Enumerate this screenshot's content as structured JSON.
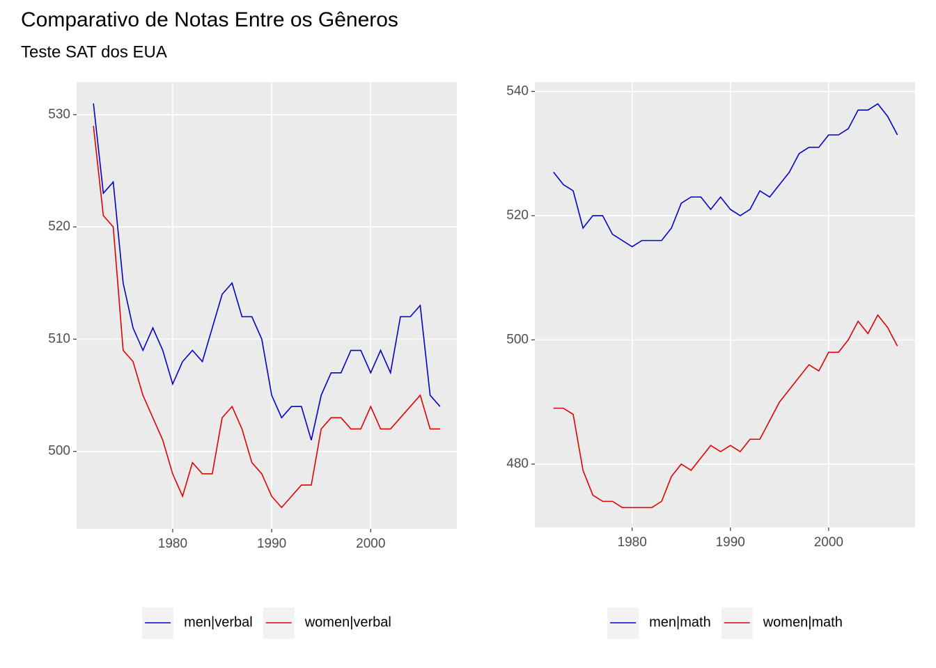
{
  "title": "Comparativo de Notas Entre os Gêneros",
  "subtitle": "Teste SAT dos EUA",
  "chart_data": [
    {
      "type": "line",
      "x": [
        1972,
        1973,
        1974,
        1975,
        1976,
        1977,
        1978,
        1979,
        1980,
        1981,
        1982,
        1983,
        1984,
        1985,
        1986,
        1987,
        1988,
        1989,
        1990,
        1991,
        1992,
        1993,
        1994,
        1995,
        1996,
        1997,
        1998,
        1999,
        2000,
        2001,
        2002,
        2003,
        2004,
        2005,
        2006,
        2007
      ],
      "series": [
        {
          "name": "men|verbal",
          "color": "#0000cd",
          "values": [
            531,
            523,
            524,
            515,
            511,
            509,
            511,
            509,
            506,
            508,
            509,
            508,
            511,
            514,
            515,
            512,
            512,
            510,
            505,
            503,
            504,
            504,
            501,
            505,
            507,
            507,
            509,
            509,
            507,
            509,
            507,
            512,
            512,
            513,
            505,
            504
          ]
        },
        {
          "name": "women|verbal",
          "color": "#e00000",
          "values": [
            529,
            521,
            520,
            509,
            508,
            505,
            503,
            501,
            498,
            496,
            499,
            498,
            498,
            503,
            504,
            502,
            499,
            498,
            496,
            495,
            496,
            497,
            497,
            502,
            503,
            503,
            502,
            502,
            504,
            502,
            502,
            503,
            504,
            505,
            502,
            502
          ]
        }
      ],
      "xlim": [
        1970.3,
        2008.7
      ],
      "xticks": [
        1980,
        1990,
        2000
      ],
      "ylim": [
        493.1,
        532.9
      ],
      "yticks": [
        500,
        510,
        520,
        530
      ],
      "grid": true,
      "legend": "bottom"
    },
    {
      "type": "line",
      "x": [
        1972,
        1973,
        1974,
        1975,
        1976,
        1977,
        1978,
        1979,
        1980,
        1981,
        1982,
        1983,
        1984,
        1985,
        1986,
        1987,
        1988,
        1989,
        1990,
        1991,
        1992,
        1993,
        1994,
        1995,
        1996,
        1997,
        1998,
        1999,
        2000,
        2001,
        2002,
        2003,
        2004,
        2005,
        2006,
        2007
      ],
      "series": [
        {
          "name": "men|math",
          "color": "#0000cd",
          "values": [
            527,
            525,
            524,
            518,
            520,
            520,
            517,
            516,
            515,
            516,
            516,
            516,
            518,
            522,
            523,
            523,
            521,
            523,
            521,
            520,
            521,
            524,
            523,
            525,
            527,
            530,
            531,
            531,
            533,
            533,
            534,
            537,
            537,
            538,
            536,
            533
          ]
        },
        {
          "name": "women|math",
          "color": "#e00000",
          "values": [
            489,
            489,
            488,
            479,
            475,
            474,
            474,
            473,
            473,
            473,
            473,
            474,
            478,
            480,
            479,
            481,
            483,
            482,
            483,
            482,
            484,
            484,
            487,
            490,
            492,
            494,
            496,
            495,
            498,
            498,
            500,
            503,
            501,
            504,
            502,
            499
          ]
        }
      ],
      "xlim": [
        1970.1,
        2008.8
      ],
      "xticks": [
        1980,
        1990,
        2000
      ],
      "ylim": [
        469.8,
        541.5
      ],
      "yticks": [
        480,
        500,
        520,
        540
      ],
      "grid": true,
      "legend": "bottom"
    }
  ]
}
